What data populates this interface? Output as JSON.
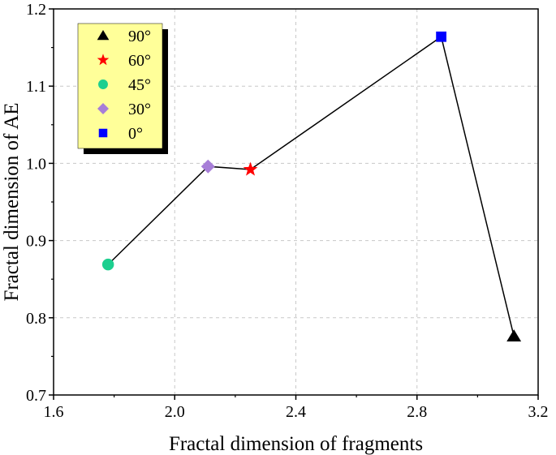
{
  "chart_data": {
    "type": "scatter",
    "xlabel": "Fractal dimension of fragments",
    "ylabel": "Fractal dimension of AE",
    "xlim": [
      1.6,
      3.2
    ],
    "ylim": [
      0.7,
      1.2
    ],
    "xticks": [
      1.6,
      2.0,
      2.4,
      2.8,
      3.2
    ],
    "yticks": [
      0.7,
      0.8,
      0.9,
      1.0,
      1.1,
      1.2
    ],
    "xtick_labels": [
      "1.6",
      "2.0",
      "2.4",
      "2.8",
      "3.2"
    ],
    "ytick_labels": [
      "0.7",
      "0.8",
      "0.9",
      "1.0",
      "1.1",
      "1.2"
    ],
    "grid": true,
    "legend_position": "top-left",
    "connecting_line": {
      "order": [
        "45°",
        "30°",
        "60°",
        "0°",
        "90°"
      ],
      "color": "#000000"
    },
    "series": [
      {
        "name": "90°",
        "marker": "triangle",
        "color": "#000000",
        "x": 3.12,
        "y": 0.776
      },
      {
        "name": "60°",
        "marker": "star",
        "color": "#ff0000",
        "x": 2.25,
        "y": 0.992
      },
      {
        "name": "45°",
        "marker": "circle",
        "color": "#1dcf8f",
        "x": 1.78,
        "y": 0.869
      },
      {
        "name": "30°",
        "marker": "diamond",
        "color": "#a77ed8",
        "x": 2.11,
        "y": 0.996
      },
      {
        "name": "0°",
        "marker": "square",
        "color": "#0000ff",
        "x": 2.88,
        "y": 1.164
      }
    ],
    "legend": {
      "background": "#ffff99",
      "shadow": "#000000"
    }
  }
}
